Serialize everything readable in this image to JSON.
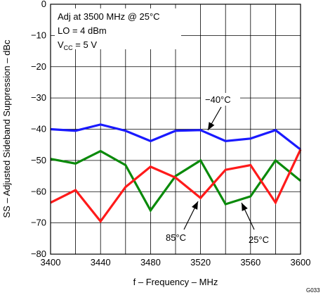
{
  "chart_data": {
    "type": "line",
    "title": "",
    "xlabel": "f – Frequency – MHz",
    "ylabel": "SS – Adjusted Sideband Suppression – dBc",
    "xlim": [
      3400,
      3600
    ],
    "ylim": [
      -80,
      0
    ],
    "grid": true,
    "x": [
      3400,
      3420,
      3440,
      3460,
      3480,
      3500,
      3520,
      3540,
      3560,
      3580,
      3600
    ],
    "x_ticks": [
      "3400",
      "3440",
      "3480",
      "3520",
      "3560",
      "3600"
    ],
    "y_ticks": [
      "0",
      "−10",
      "−20",
      "−30",
      "−40",
      "−50",
      "−60",
      "−70",
      "−80"
    ],
    "series": [
      {
        "name": "−40°C",
        "color": "#1a1aff",
        "values": [
          -40,
          -40.5,
          -38.5,
          -40.5,
          -43.8,
          -40.5,
          -40.3,
          -43.8,
          -43,
          -40.3,
          -46.5
        ]
      },
      {
        "name": "25°C",
        "color": "#0a8a0a",
        "values": [
          -49.5,
          -51,
          -47,
          -51.5,
          -66,
          -55,
          -50,
          -64,
          -61.5,
          -50,
          -56.5
        ]
      },
      {
        "name": "85°C",
        "color": "#ff1a1a",
        "values": [
          -63.5,
          -59.5,
          -69.5,
          -58.5,
          -52,
          -55.5,
          -62,
          -53,
          -51.5,
          -63.5,
          -46.5
        ]
      }
    ],
    "annotations": {
      "line1": "Adj at 3500 MHz @ 25°C",
      "line2": "LO = 4 dBm",
      "line3_main": "V",
      "line3_sub": "CC",
      "line3_rest": " =  5 V"
    },
    "callouts": [
      "−40°C",
      "85°C",
      "25°C"
    ]
  },
  "figure_id": "G033"
}
